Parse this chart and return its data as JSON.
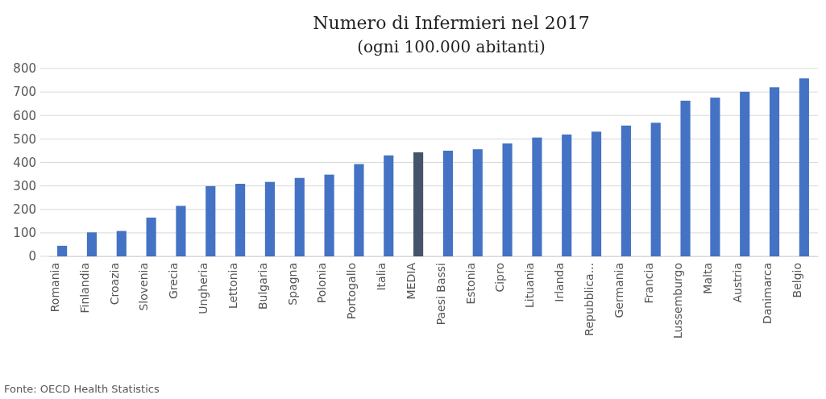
{
  "chart_data": {
    "type": "bar",
    "title": "Numero di Infermieri nel 2017",
    "subtitle": "(ogni 100.000 abitanti)",
    "categories": [
      "Romania",
      "Finlandia",
      "Croazia",
      "Slovenia",
      "Grecia",
      "Ungheria",
      "Lettonia",
      "Bulgaria",
      "Spagna",
      "Polonia",
      "Portogallo",
      "Italia",
      "MEDIA",
      "Paesi Bassi",
      "Estonia",
      "Cipro",
      "Lituania",
      "Irlanda",
      "Repubblica...",
      "Germania",
      "Francia",
      "Lussemburgo",
      "Malta",
      "Austria",
      "Danimarca",
      "Belgio"
    ],
    "values": [
      45,
      102,
      108,
      165,
      215,
      299,
      309,
      317,
      334,
      348,
      393,
      430,
      443,
      450,
      456,
      481,
      506,
      519,
      531,
      557,
      569,
      663,
      676,
      701,
      720,
      758
    ],
    "colors": [
      "#4472c4",
      "#4472c4",
      "#4472c4",
      "#4472c4",
      "#4472c4",
      "#4472c4",
      "#4472c4",
      "#4472c4",
      "#4472c4",
      "#4472c4",
      "#4472c4",
      "#4472c4",
      "#44546a",
      "#4472c4",
      "#4472c4",
      "#4472c4",
      "#4472c4",
      "#4472c4",
      "#4472c4",
      "#4472c4",
      "#4472c4",
      "#4472c4",
      "#4472c4",
      "#4472c4",
      "#4472c4",
      "#4472c4"
    ],
    "ylim": [
      0,
      800
    ],
    "yticks": [
      0,
      100,
      200,
      300,
      400,
      500,
      600,
      700,
      800
    ],
    "grid": "y",
    "annotations": [
      "Fonte: OECD Health Statistics"
    ]
  }
}
